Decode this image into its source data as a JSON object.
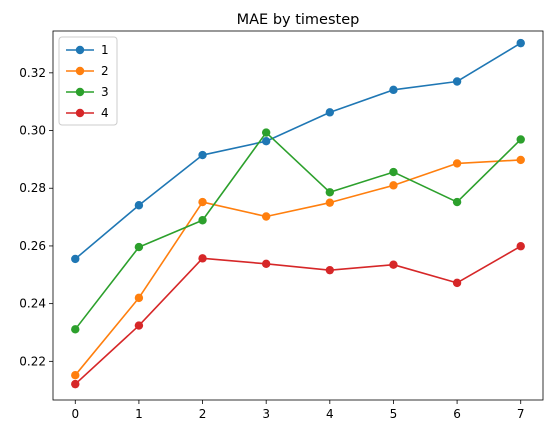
{
  "chart_data": {
    "type": "line",
    "title": "MAE by timestep",
    "xlabel": "",
    "ylabel": "",
    "x": [
      0,
      1,
      2,
      3,
      4,
      5,
      6,
      7
    ],
    "xlim": [
      -0.35,
      7.35
    ],
    "ylim": [
      0.2066,
      0.3345
    ],
    "xticks": [
      "0",
      "1",
      "2",
      "3",
      "4",
      "5",
      "6",
      "7"
    ],
    "yticks": [
      "0.22",
      "0.24",
      "0.26",
      "0.28",
      "0.30",
      "0.32"
    ],
    "ytick_values": [
      0.22,
      0.24,
      0.26,
      0.28,
      0.3,
      0.32
    ],
    "grid": false,
    "legend_position": "top-left",
    "series": [
      {
        "name": "1",
        "color": "#1f77b4",
        "values": [
          0.2555,
          0.2741,
          0.2915,
          0.2963,
          0.3063,
          0.3141,
          0.317,
          0.3303
        ]
      },
      {
        "name": "2",
        "color": "#ff7f0e",
        "values": [
          0.2152,
          0.242,
          0.2752,
          0.2702,
          0.275,
          0.281,
          0.2886,
          0.2898
        ]
      },
      {
        "name": "3",
        "color": "#2ca02c",
        "values": [
          0.2311,
          0.2596,
          0.2689,
          0.2993,
          0.2786,
          0.2856,
          0.2752,
          0.2969
        ]
      },
      {
        "name": "4",
        "color": "#d62728",
        "values": [
          0.2121,
          0.2324,
          0.2557,
          0.2538,
          0.2516,
          0.2535,
          0.2472,
          0.2599
        ]
      }
    ]
  }
}
